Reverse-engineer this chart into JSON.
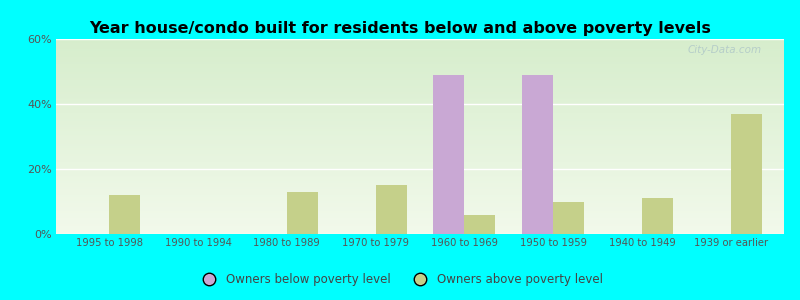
{
  "title": "Year house/condo built for residents below and above poverty levels",
  "categories": [
    "1995 to 1998",
    "1990 to 1994",
    "1980 to 1989",
    "1970 to 1979",
    "1960 to 1969",
    "1950 to 1959",
    "1940 to 1949",
    "1939 or earlier"
  ],
  "below_poverty": [
    0,
    0,
    0,
    0,
    49,
    49,
    0,
    0
  ],
  "above_poverty": [
    12,
    0,
    13,
    15,
    6,
    10,
    11,
    37
  ],
  "below_color": "#c9a8d4",
  "above_color": "#c5d08a",
  "ylim": [
    0,
    60
  ],
  "yticks": [
    0,
    20,
    40,
    60
  ],
  "ytick_labels": [
    "0%",
    "20%",
    "40%",
    "60%"
  ],
  "outer_bg": "#00ffff",
  "bar_width": 0.35,
  "legend_below": "Owners below poverty level",
  "legend_above": "Owners above poverty level",
  "watermark": "City-Data.com",
  "plot_bg_top": "#d6edcc",
  "plot_bg_bottom": "#f2f9eb"
}
